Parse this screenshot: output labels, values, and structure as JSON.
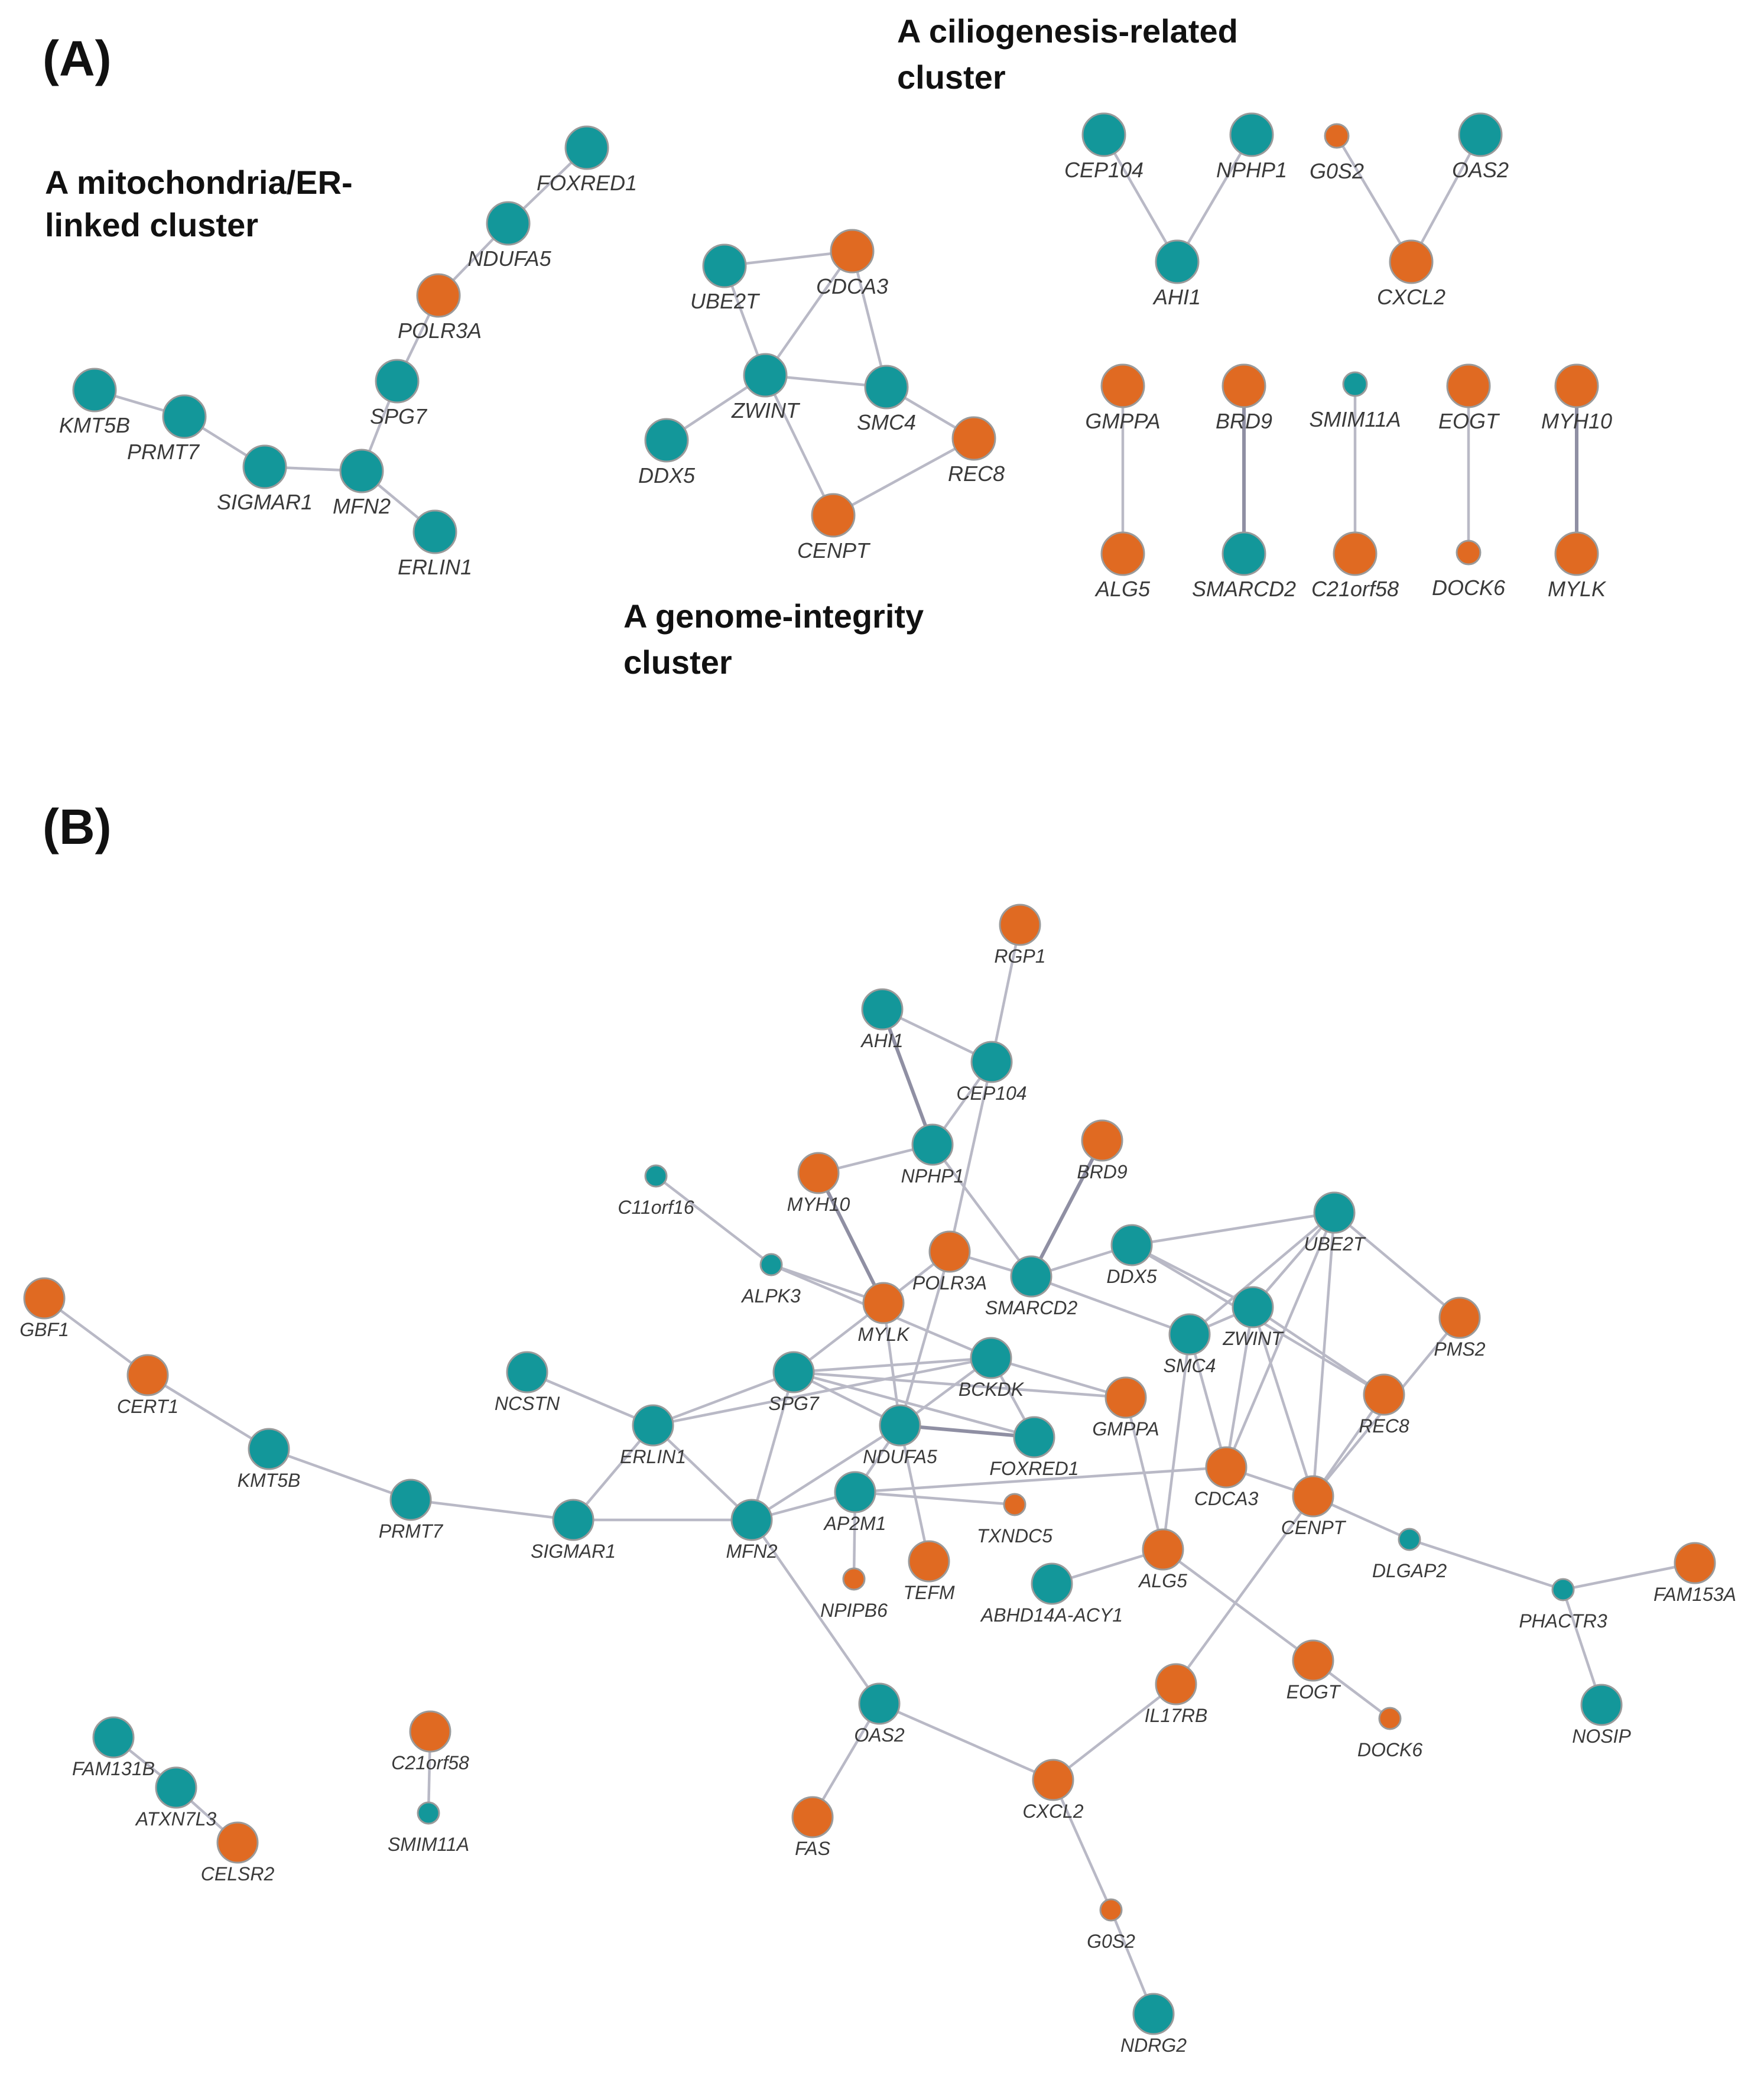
{
  "colors": {
    "teal": "#13979a",
    "orange": "#e06a22",
    "edge": "#b9b9c6"
  },
  "panelA": {
    "label": "(A)",
    "cluster_mito": [
      "A mitochondria/ER-",
      "linked cluster"
    ],
    "cluster_genome": [
      "A genome-integrity",
      "cluster"
    ],
    "cluster_cilia": [
      "A ciliogenesis-related",
      "cluster"
    ],
    "nodes": [
      {
        "id": "FOXRED1",
        "color": "teal"
      },
      {
        "id": "NDUFA5",
        "color": "teal"
      },
      {
        "id": "POLR3A",
        "color": "orange"
      },
      {
        "id": "SPG7",
        "color": "teal"
      },
      {
        "id": "KMT5B",
        "color": "teal"
      },
      {
        "id": "PRMT7",
        "color": "teal"
      },
      {
        "id": "SIGMAR1",
        "color": "teal"
      },
      {
        "id": "MFN2",
        "color": "teal"
      },
      {
        "id": "ERLIN1",
        "color": "teal"
      },
      {
        "id": "UBE2T",
        "color": "teal"
      },
      {
        "id": "CDCA3",
        "color": "orange"
      },
      {
        "id": "ZWINT",
        "color": "teal"
      },
      {
        "id": "SMC4",
        "color": "teal"
      },
      {
        "id": "DDX5",
        "color": "teal"
      },
      {
        "id": "REC8",
        "color": "orange"
      },
      {
        "id": "CENPT",
        "color": "orange"
      },
      {
        "id": "CEP104",
        "color": "teal"
      },
      {
        "id": "NPHP1",
        "color": "teal"
      },
      {
        "id": "G0S2",
        "color": "orange",
        "small": true
      },
      {
        "id": "OAS2",
        "color": "teal"
      },
      {
        "id": "AHI1",
        "color": "teal"
      },
      {
        "id": "CXCL2",
        "color": "orange"
      },
      {
        "id": "GMPPA",
        "color": "orange"
      },
      {
        "id": "BRD9",
        "color": "orange"
      },
      {
        "id": "SMIM11A",
        "color": "teal",
        "small": true
      },
      {
        "id": "EOGT",
        "color": "orange"
      },
      {
        "id": "MYH10",
        "color": "orange"
      },
      {
        "id": "ALG5",
        "color": "orange"
      },
      {
        "id": "SMARCD2",
        "color": "teal"
      },
      {
        "id": "C21orf58",
        "color": "orange"
      },
      {
        "id": "DOCK6",
        "color": "orange",
        "small": true
      },
      {
        "id": "MYLK",
        "color": "orange"
      }
    ],
    "edges": [
      [
        "FOXRED1",
        "NDUFA5"
      ],
      [
        "NDUFA5",
        "POLR3A"
      ],
      [
        "POLR3A",
        "SPG7"
      ],
      [
        "SPG7",
        "MFN2"
      ],
      [
        "KMT5B",
        "PRMT7"
      ],
      [
        "PRMT7",
        "SIGMAR1"
      ],
      [
        "SIGMAR1",
        "MFN2"
      ],
      [
        "MFN2",
        "ERLIN1"
      ],
      [
        "UBE2T",
        "CDCA3"
      ],
      [
        "UBE2T",
        "ZWINT"
      ],
      [
        "CDCA3",
        "ZWINT"
      ],
      [
        "CDCA3",
        "SMC4"
      ],
      [
        "ZWINT",
        "SMC4"
      ],
      [
        "ZWINT",
        "DDX5"
      ],
      [
        "ZWINT",
        "CENPT"
      ],
      [
        "SMC4",
        "REC8"
      ],
      [
        "REC8",
        "CENPT"
      ],
      [
        "CEP104",
        "AHI1"
      ],
      [
        "NPHP1",
        "AHI1"
      ],
      [
        "G0S2",
        "CXCL2"
      ],
      [
        "OAS2",
        "CXCL2"
      ],
      [
        "GMPPA",
        "ALG5"
      ],
      [
        "BRD9",
        "SMARCD2"
      ],
      [
        "SMIM11A",
        "C21orf58"
      ],
      [
        "EOGT",
        "DOCK6"
      ],
      [
        "MYH10",
        "MYLK"
      ]
    ]
  },
  "panelB": {
    "label": "(B)",
    "nodes": [
      {
        "id": "RGP1",
        "color": "orange"
      },
      {
        "id": "AHI1",
        "color": "teal"
      },
      {
        "id": "CEP104",
        "color": "teal"
      },
      {
        "id": "NPHP1",
        "color": "teal"
      },
      {
        "id": "BRD9",
        "color": "orange"
      },
      {
        "id": "MYH10",
        "color": "orange"
      },
      {
        "id": "C11orf16",
        "color": "teal",
        "small": true
      },
      {
        "id": "ALPK3",
        "color": "teal",
        "small": true
      },
      {
        "id": "POLR3A",
        "color": "orange"
      },
      {
        "id": "MYLK",
        "color": "orange"
      },
      {
        "id": "SMARCD2",
        "color": "teal"
      },
      {
        "id": "DDX5",
        "color": "teal"
      },
      {
        "id": "UBE2T",
        "color": "teal"
      },
      {
        "id": "ZWINT",
        "color": "teal"
      },
      {
        "id": "SMC4",
        "color": "teal"
      },
      {
        "id": "PMS2",
        "color": "orange"
      },
      {
        "id": "REC8",
        "color": "orange"
      },
      {
        "id": "GBF1",
        "color": "orange"
      },
      {
        "id": "CERT1",
        "color": "orange"
      },
      {
        "id": "KMT5B",
        "color": "teal"
      },
      {
        "id": "PRMT7",
        "color": "teal"
      },
      {
        "id": "SIGMAR1",
        "color": "teal"
      },
      {
        "id": "NCSTN",
        "color": "teal"
      },
      {
        "id": "ERLIN1",
        "color": "teal"
      },
      {
        "id": "SPG7",
        "color": "teal"
      },
      {
        "id": "BCKDK",
        "color": "teal"
      },
      {
        "id": "GMPPA",
        "color": "orange"
      },
      {
        "id": "NDUFA5",
        "color": "teal"
      },
      {
        "id": "FOXRED1",
        "color": "teal"
      },
      {
        "id": "MFN2",
        "color": "teal"
      },
      {
        "id": "AP2M1",
        "color": "teal"
      },
      {
        "id": "TXNDC5",
        "color": "orange",
        "small": true
      },
      {
        "id": "CDCA3",
        "color": "orange"
      },
      {
        "id": "CENPT",
        "color": "orange"
      },
      {
        "id": "DLGAP2",
        "color": "teal",
        "small": true
      },
      {
        "id": "PHACTR3",
        "color": "teal",
        "small": true
      },
      {
        "id": "FAM153A",
        "color": "orange"
      },
      {
        "id": "NPIPB6",
        "color": "orange",
        "small": true
      },
      {
        "id": "TEFM",
        "color": "orange"
      },
      {
        "id": "ABHD14A-ACY1",
        "color": "teal"
      },
      {
        "id": "ALG5",
        "color": "orange"
      },
      {
        "id": "EOGT",
        "color": "orange"
      },
      {
        "id": "DOCK6",
        "color": "orange",
        "small": true
      },
      {
        "id": "IL17RB",
        "color": "orange"
      },
      {
        "id": "NOSIP",
        "color": "teal"
      },
      {
        "id": "OAS2",
        "color": "teal"
      },
      {
        "id": "CXCL2",
        "color": "orange"
      },
      {
        "id": "FAS",
        "color": "orange"
      },
      {
        "id": "G0S2",
        "color": "orange",
        "small": true
      },
      {
        "id": "NDRG2",
        "color": "teal"
      },
      {
        "id": "FAM131B",
        "color": "teal"
      },
      {
        "id": "ATXN7L3",
        "color": "teal"
      },
      {
        "id": "CELSR2",
        "color": "orange"
      },
      {
        "id": "C21orf58",
        "color": "orange"
      },
      {
        "id": "SMIM11A",
        "color": "teal",
        "small": true
      }
    ],
    "edges": [
      [
        "RGP1",
        "CEP104"
      ],
      [
        "AHI1",
        "CEP104"
      ],
      [
        "AHI1",
        "NPHP1"
      ],
      [
        "CEP104",
        "NPHP1"
      ],
      [
        "NPHP1",
        "MYH10"
      ],
      [
        "NPHP1",
        "SMARCD2"
      ],
      [
        "CEP104",
        "POLR3A"
      ],
      [
        "BRD9",
        "SMARCD2"
      ],
      [
        "MYH10",
        "MYLK"
      ],
      [
        "C11orf16",
        "ALPK3"
      ],
      [
        "ALPK3",
        "MYLK"
      ],
      [
        "ALPK3",
        "BCKDK"
      ],
      [
        "MYLK",
        "SPG7"
      ],
      [
        "MYLK",
        "NDUFA5"
      ],
      [
        "POLR3A",
        "MYLK"
      ],
      [
        "POLR3A",
        "NDUFA5"
      ],
      [
        "POLR3A",
        "SMARCD2"
      ],
      [
        "SMARCD2",
        "DDX5"
      ],
      [
        "SMARCD2",
        "SMC4"
      ],
      [
        "DDX5",
        "ZWINT"
      ],
      [
        "DDX5",
        "UBE2T"
      ],
      [
        "DDX5",
        "REC8"
      ],
      [
        "UBE2T",
        "ZWINT"
      ],
      [
        "UBE2T",
        "SMC4"
      ],
      [
        "UBE2T",
        "CDCA3"
      ],
      [
        "UBE2T",
        "CENPT"
      ],
      [
        "UBE2T",
        "PMS2"
      ],
      [
        "ZWINT",
        "SMC4"
      ],
      [
        "ZWINT",
        "CDCA3"
      ],
      [
        "ZWINT",
        "CENPT"
      ],
      [
        "ZWINT",
        "REC8"
      ],
      [
        "SMC4",
        "CDCA3"
      ],
      [
        "SMC4",
        "ALG5"
      ],
      [
        "PMS2",
        "CENPT"
      ],
      [
        "REC8",
        "CENPT"
      ],
      [
        "CDCA3",
        "CENPT"
      ],
      [
        "GBF1",
        "CERT1"
      ],
      [
        "CERT1",
        "KMT5B"
      ],
      [
        "KMT5B",
        "PRMT7"
      ],
      [
        "PRMT7",
        "SIGMAR1"
      ],
      [
        "SIGMAR1",
        "MFN2"
      ],
      [
        "SIGMAR1",
        "ERLIN1"
      ],
      [
        "NCSTN",
        "ERLIN1"
      ],
      [
        "ERLIN1",
        "MFN2"
      ],
      [
        "ERLIN1",
        "SPG7"
      ],
      [
        "ERLIN1",
        "BCKDK"
      ],
      [
        "SPG7",
        "MFN2"
      ],
      [
        "SPG7",
        "BCKDK"
      ],
      [
        "SPG7",
        "NDUFA5"
      ],
      [
        "SPG7",
        "FOXRED1"
      ],
      [
        "SPG7",
        "GMPPA"
      ],
      [
        "MFN2",
        "NDUFA5"
      ],
      [
        "MFN2",
        "AP2M1"
      ],
      [
        "MFN2",
        "OAS2"
      ],
      [
        "NDUFA5",
        "FOXRED1"
      ],
      [
        "NDUFA5",
        "AP2M1"
      ],
      [
        "NDUFA5",
        "TEFM"
      ],
      [
        "NDUFA5",
        "BCKDK"
      ],
      [
        "BCKDK",
        "FOXRED1"
      ],
      [
        "BCKDK",
        "GMPPA"
      ],
      [
        "AP2M1",
        "NPIPB6"
      ],
      [
        "AP2M1",
        "TXNDC5"
      ],
      [
        "AP2M1",
        "CDCA3"
      ],
      [
        "GMPPA",
        "ALG5"
      ],
      [
        "ALG5",
        "ABHD14A-ACY1"
      ],
      [
        "ALG5",
        "EOGT"
      ],
      [
        "EOGT",
        "DOCK6"
      ],
      [
        "CENPT",
        "IL17RB"
      ],
      [
        "CENPT",
        "DLGAP2"
      ],
      [
        "DLGAP2",
        "PHACTR3"
      ],
      [
        "PHACTR3",
        "FAM153A"
      ],
      [
        "PHACTR3",
        "NOSIP"
      ],
      [
        "IL17RB",
        "CXCL2"
      ],
      [
        "OAS2",
        "CXCL2"
      ],
      [
        "OAS2",
        "FAS"
      ],
      [
        "CXCL2",
        "G0S2"
      ],
      [
        "G0S2",
        "NDRG2"
      ],
      [
        "FAM131B",
        "ATXN7L3"
      ],
      [
        "ATXN7L3",
        "CELSR2"
      ],
      [
        "C21orf58",
        "SMIM11A"
      ]
    ]
  }
}
